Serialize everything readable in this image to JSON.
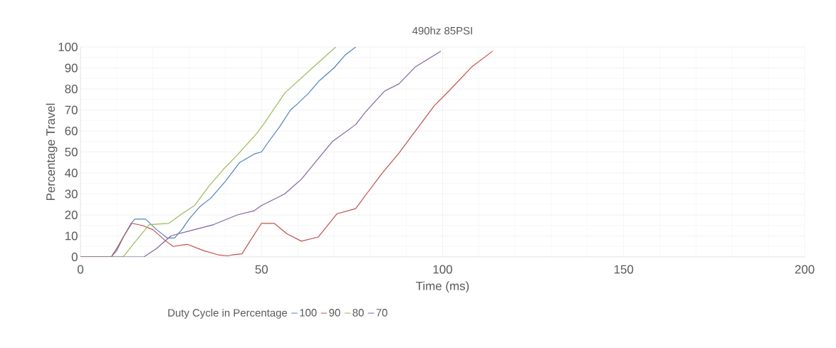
{
  "chart_data": {
    "type": "line",
    "title": "490hz 85PSI",
    "xlabel": "Time (ms)",
    "ylabel": "Percentage Travel",
    "legend_title": "Duty Cycle in Percentage",
    "xlim": [
      0,
      200
    ],
    "ylim": [
      0,
      100
    ],
    "xticks": [
      0,
      50,
      100,
      150,
      200
    ],
    "yticks": [
      0,
      10,
      20,
      30,
      40,
      50,
      60,
      70,
      80,
      90,
      100
    ],
    "grid": true,
    "legend": "bottom",
    "marker": "none",
    "line_style": "solid",
    "series": [
      {
        "name": "100",
        "color": "#4f81bd",
        "x": [
          0,
          8.5,
          10,
          12,
          14,
          15,
          18,
          21,
          24,
          26,
          28,
          30,
          33,
          36,
          40,
          44,
          48,
          50,
          52,
          55,
          58,
          60,
          63,
          66,
          70,
          73,
          76
        ],
        "values": [
          0,
          0,
          3,
          10,
          16,
          18,
          18,
          13,
          9,
          9,
          13,
          18,
          24,
          28,
          36,
          45,
          49,
          50,
          55,
          62,
          70,
          73,
          78,
          84,
          90,
          96,
          100
        ]
      },
      {
        "name": "90",
        "color": "#c0504d",
        "x": [
          0,
          8.5,
          10,
          12,
          14.2,
          17,
          20,
          23.6,
          25.6,
          29.5,
          34,
          38,
          40.7,
          42,
          44.6,
          47,
          50,
          53.5,
          57,
          61,
          65.7,
          70.8,
          76,
          79,
          83.4,
          88,
          91.2,
          97.7,
          102,
          108,
          113.8
        ],
        "values": [
          0,
          0,
          4,
          10,
          16,
          15,
          13,
          7.5,
          5,
          6,
          3,
          1,
          0.5,
          1,
          1.5,
          8,
          16,
          16,
          11,
          7.5,
          9.5,
          20.5,
          23,
          30,
          40,
          49.5,
          57,
          72,
          79.5,
          90.4,
          98
        ]
      },
      {
        "name": "80",
        "color": "#9bbb59",
        "x": [
          0,
          11.8,
          15,
          19,
          24.4,
          27.6,
          31.5,
          35.4,
          39.4,
          43.3,
          48.6,
          50.5,
          56.4,
          63.7,
          70.5
        ],
        "values": [
          0,
          0,
          7,
          15.4,
          16,
          20,
          24.5,
          33.5,
          41.6,
          48.5,
          58.7,
          63,
          78,
          89.5,
          100
        ]
      },
      {
        "name": "70",
        "color": "#8064a2",
        "x": [
          0,
          17.5,
          21,
          25,
          27,
          31.5,
          36.8,
          43.3,
          48,
          50,
          56.4,
          61,
          69.6,
          76,
          78.7,
          84,
          88,
          92.4,
          99.5
        ],
        "values": [
          0,
          0,
          4,
          10,
          11,
          13,
          15.4,
          20,
          22,
          24.5,
          30,
          37,
          55,
          63,
          69,
          79,
          82.5,
          90.4,
          98
        ]
      }
    ]
  }
}
